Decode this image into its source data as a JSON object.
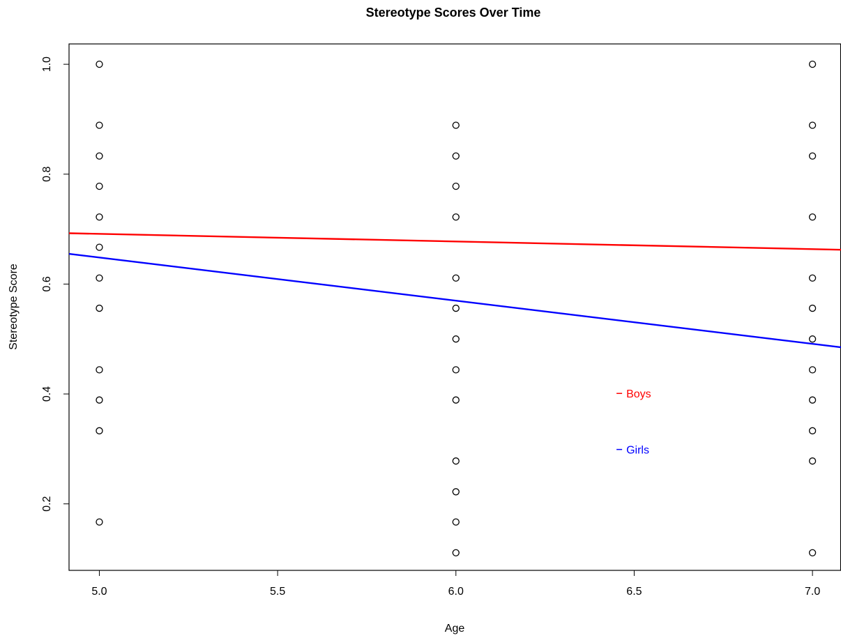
{
  "chart_data": {
    "type": "scatter",
    "title": "Stereotype Scores Over Time",
    "xlabel": "Age",
    "ylabel": "Stereotype Score",
    "xlim": [
      4.915,
      7.08
    ],
    "ylim": [
      0.079,
      1.037
    ],
    "x_ticks": [
      5.0,
      5.5,
      6.0,
      6.5,
      7.0
    ],
    "x_tick_labels": [
      "5.0",
      "5.5",
      "6.0",
      "6.5",
      "7.0"
    ],
    "y_ticks": [
      0.2,
      0.4,
      0.6,
      0.8,
      1.0
    ],
    "y_tick_labels": [
      "0.2",
      "0.4",
      "0.6",
      "0.8",
      "1.0"
    ],
    "grid": false,
    "points": [
      {
        "x": 5,
        "y": 1.0
      },
      {
        "x": 5,
        "y": 0.889
      },
      {
        "x": 5,
        "y": 0.833
      },
      {
        "x": 5,
        "y": 0.778
      },
      {
        "x": 5,
        "y": 0.722
      },
      {
        "x": 5,
        "y": 0.667
      },
      {
        "x": 5,
        "y": 0.611
      },
      {
        "x": 5,
        "y": 0.556
      },
      {
        "x": 5,
        "y": 0.444
      },
      {
        "x": 5,
        "y": 0.389
      },
      {
        "x": 5,
        "y": 0.333
      },
      {
        "x": 5,
        "y": 0.167
      },
      {
        "x": 6,
        "y": 0.889
      },
      {
        "x": 6,
        "y": 0.833
      },
      {
        "x": 6,
        "y": 0.778
      },
      {
        "x": 6,
        "y": 0.722
      },
      {
        "x": 6,
        "y": 0.611
      },
      {
        "x": 6,
        "y": 0.556
      },
      {
        "x": 6,
        "y": 0.5
      },
      {
        "x": 6,
        "y": 0.444
      },
      {
        "x": 6,
        "y": 0.389
      },
      {
        "x": 6,
        "y": 0.278
      },
      {
        "x": 6,
        "y": 0.222
      },
      {
        "x": 6,
        "y": 0.167
      },
      {
        "x": 6,
        "y": 0.111
      },
      {
        "x": 7,
        "y": 1.0
      },
      {
        "x": 7,
        "y": 0.889
      },
      {
        "x": 7,
        "y": 0.833
      },
      {
        "x": 7,
        "y": 0.722
      },
      {
        "x": 7,
        "y": 0.611
      },
      {
        "x": 7,
        "y": 0.556
      },
      {
        "x": 7,
        "y": 0.5
      },
      {
        "x": 7,
        "y": 0.444
      },
      {
        "x": 7,
        "y": 0.389
      },
      {
        "x": 7,
        "y": 0.333
      },
      {
        "x": 7,
        "y": 0.278
      },
      {
        "x": 7,
        "y": 0.111
      }
    ],
    "series": [
      {
        "name": "Boys",
        "color": "#ff0000",
        "x": [
          4.915,
          7.08
        ],
        "y": [
          0.6925,
          0.6625
        ]
      },
      {
        "name": "Girls",
        "color": "#0000ff",
        "x": [
          4.915,
          7.08
        ],
        "y": [
          0.655,
          0.485
        ]
      }
    ],
    "legend": [
      {
        "label": "Boys",
        "color": "#ff0000",
        "x": 6.47,
        "y": 0.401
      },
      {
        "label": "Girls",
        "color": "#0000ff",
        "x": 6.47,
        "y": 0.299
      }
    ]
  }
}
